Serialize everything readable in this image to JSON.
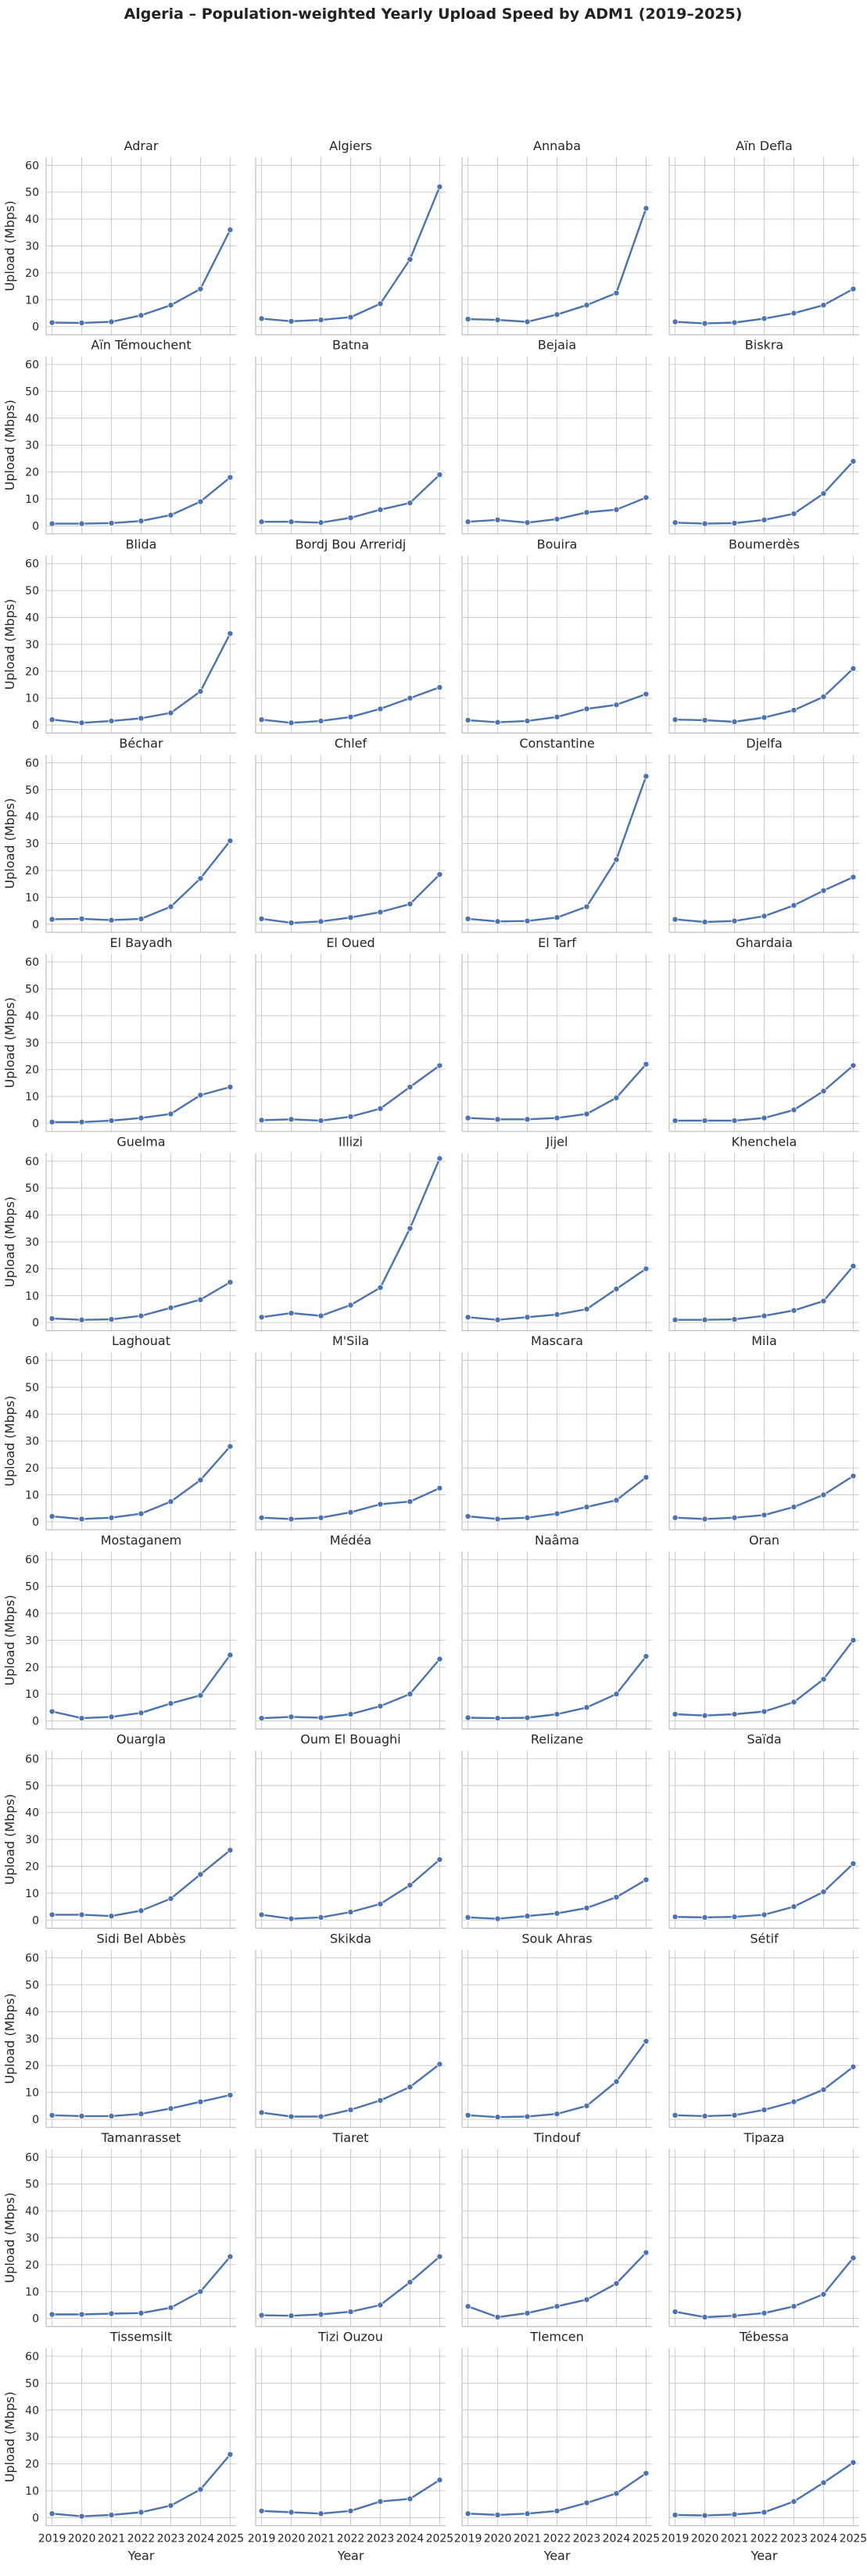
{
  "chart_data": {
    "type": "line",
    "title": "Algeria – Population-weighted Yearly Upload Speed by ADM1 (2019–2025)",
    "xlabel": "Year",
    "ylabel": "Upload (Mbps)",
    "x": [
      2019,
      2020,
      2021,
      2022,
      2023,
      2024,
      2025
    ],
    "yticks": [
      0,
      10,
      20,
      30,
      40,
      50,
      60
    ],
    "ylim": [
      -3,
      63
    ],
    "xlim": [
      2018.8,
      2025.2
    ],
    "grid": true,
    "color": "#4c72b0",
    "panels": [
      {
        "name": "Adrar",
        "values": [
          1.5,
          1.4,
          1.8,
          4.2,
          8.0,
          14.0,
          36.0
        ]
      },
      {
        "name": "Algiers",
        "values": [
          3.0,
          2.0,
          2.5,
          3.5,
          8.5,
          25.0,
          52.0
        ]
      },
      {
        "name": "Annaba",
        "values": [
          2.8,
          2.5,
          1.8,
          4.5,
          8.0,
          12.5,
          44.0
        ]
      },
      {
        "name": "Aïn Defla",
        "values": [
          1.8,
          1.2,
          1.5,
          3.0,
          5.0,
          8.0,
          14.0
        ]
      },
      {
        "name": "Aïn Témouchent",
        "values": [
          0.8,
          0.8,
          1.0,
          1.8,
          4.0,
          9.0,
          18.0
        ]
      },
      {
        "name": "Batna",
        "values": [
          1.5,
          1.5,
          1.2,
          3.0,
          6.0,
          8.5,
          19.0
        ]
      },
      {
        "name": "Bejaia",
        "values": [
          1.5,
          2.2,
          1.2,
          2.5,
          5.0,
          6.0,
          10.5
        ]
      },
      {
        "name": "Biskra",
        "values": [
          1.2,
          0.8,
          1.0,
          2.2,
          4.5,
          12.0,
          24.0
        ]
      },
      {
        "name": "Blida",
        "values": [
          2.0,
          0.8,
          1.5,
          2.5,
          4.5,
          12.5,
          34.0
        ]
      },
      {
        "name": "Bordj Bou Arreridj",
        "values": [
          2.0,
          0.8,
          1.5,
          3.0,
          6.0,
          10.0,
          14.0
        ]
      },
      {
        "name": "Bouira",
        "values": [
          1.8,
          1.0,
          1.5,
          3.0,
          6.0,
          7.5,
          11.5
        ]
      },
      {
        "name": "Boumerdès",
        "values": [
          2.0,
          1.8,
          1.2,
          2.8,
          5.5,
          10.5,
          21.0
        ]
      },
      {
        "name": "Béchar",
        "values": [
          1.8,
          2.0,
          1.5,
          2.0,
          6.5,
          17.0,
          31.0
        ]
      },
      {
        "name": "Chlef",
        "values": [
          2.0,
          0.5,
          1.0,
          2.5,
          4.5,
          7.5,
          18.5
        ]
      },
      {
        "name": "Constantine",
        "values": [
          2.0,
          1.0,
          1.2,
          2.5,
          6.5,
          24.0,
          55.0
        ]
      },
      {
        "name": "Djelfa",
        "values": [
          1.8,
          0.8,
          1.2,
          3.0,
          7.0,
          12.5,
          17.5
        ]
      },
      {
        "name": "El Bayadh",
        "values": [
          0.5,
          0.5,
          1.0,
          2.0,
          3.5,
          10.5,
          13.5
        ]
      },
      {
        "name": "El Oued",
        "values": [
          1.2,
          1.5,
          1.0,
          2.5,
          5.5,
          13.5,
          21.5
        ]
      },
      {
        "name": "El Tarf",
        "values": [
          2.0,
          1.5,
          1.5,
          2.0,
          3.5,
          9.5,
          22.0
        ]
      },
      {
        "name": "Ghardaia",
        "values": [
          1.0,
          1.0,
          1.0,
          2.0,
          5.0,
          12.0,
          21.5
        ]
      },
      {
        "name": "Guelma",
        "values": [
          1.5,
          1.0,
          1.2,
          2.5,
          5.5,
          8.5,
          15.0
        ]
      },
      {
        "name": "Illizi",
        "values": [
          2.0,
          3.5,
          2.5,
          6.5,
          13.0,
          35.0,
          61.0
        ]
      },
      {
        "name": "Jijel",
        "values": [
          2.0,
          1.0,
          2.0,
          3.0,
          5.0,
          12.5,
          20.0
        ]
      },
      {
        "name": "Khenchela",
        "values": [
          1.0,
          1.0,
          1.2,
          2.5,
          4.5,
          8.0,
          21.0
        ]
      },
      {
        "name": "Laghouat",
        "values": [
          2.0,
          1.0,
          1.5,
          3.0,
          7.5,
          15.5,
          28.0
        ]
      },
      {
        "name": "M'Sila",
        "values": [
          1.5,
          1.0,
          1.5,
          3.5,
          6.5,
          7.5,
          12.5
        ]
      },
      {
        "name": "Mascara",
        "values": [
          2.0,
          1.0,
          1.5,
          3.0,
          5.5,
          8.0,
          16.5
        ]
      },
      {
        "name": "Mila",
        "values": [
          1.5,
          1.0,
          1.5,
          2.5,
          5.5,
          10.0,
          17.0
        ]
      },
      {
        "name": "Mostaganem",
        "values": [
          3.5,
          1.0,
          1.5,
          3.0,
          6.5,
          9.5,
          24.5
        ]
      },
      {
        "name": "Médéa",
        "values": [
          1.0,
          1.5,
          1.2,
          2.5,
          5.5,
          10.0,
          23.0
        ]
      },
      {
        "name": "Naâma",
        "values": [
          1.2,
          1.0,
          1.2,
          2.5,
          5.0,
          10.0,
          24.0
        ]
      },
      {
        "name": "Oran",
        "values": [
          2.5,
          2.0,
          2.5,
          3.5,
          7.0,
          15.5,
          30.0
        ]
      },
      {
        "name": "Ouargla",
        "values": [
          2.0,
          2.0,
          1.5,
          3.5,
          8.0,
          17.0,
          26.0
        ]
      },
      {
        "name": "Oum El Bouaghi",
        "values": [
          2.0,
          0.5,
          1.0,
          3.0,
          6.0,
          13.0,
          22.5
        ]
      },
      {
        "name": "Relizane",
        "values": [
          1.0,
          0.5,
          1.5,
          2.5,
          4.5,
          8.5,
          15.0
        ]
      },
      {
        "name": "Saïda",
        "values": [
          1.2,
          1.0,
          1.2,
          2.0,
          5.0,
          10.5,
          21.0
        ]
      },
      {
        "name": "Sidi Bel Abbès",
        "values": [
          1.5,
          1.2,
          1.2,
          2.0,
          4.0,
          6.5,
          9.0
        ]
      },
      {
        "name": "Skikda",
        "values": [
          2.5,
          1.0,
          1.0,
          3.5,
          7.0,
          12.0,
          20.5
        ]
      },
      {
        "name": "Souk Ahras",
        "values": [
          1.5,
          0.8,
          1.0,
          2.0,
          5.0,
          14.0,
          29.0
        ]
      },
      {
        "name": "Sétif",
        "values": [
          1.5,
          1.2,
          1.5,
          3.5,
          6.5,
          11.0,
          19.5
        ]
      },
      {
        "name": "Tamanrasset",
        "values": [
          1.5,
          1.5,
          1.8,
          2.0,
          4.0,
          10.0,
          23.0
        ]
      },
      {
        "name": "Tiaret",
        "values": [
          1.2,
          1.0,
          1.5,
          2.5,
          5.0,
          13.5,
          23.0
        ]
      },
      {
        "name": "Tindouf",
        "values": [
          4.5,
          0.5,
          2.0,
          4.5,
          7.0,
          13.0,
          24.5
        ]
      },
      {
        "name": "Tipaza",
        "values": [
          2.5,
          0.5,
          1.0,
          2.0,
          4.5,
          9.0,
          22.5
        ]
      },
      {
        "name": "Tissemsilt",
        "values": [
          1.5,
          0.5,
          1.0,
          2.0,
          4.5,
          10.5,
          23.5
        ]
      },
      {
        "name": "Tizi Ouzou",
        "values": [
          2.5,
          2.0,
          1.5,
          2.5,
          6.0,
          7.0,
          14.0
        ]
      },
      {
        "name": "Tlemcen",
        "values": [
          1.5,
          1.0,
          1.5,
          2.5,
          5.5,
          9.0,
          16.5
        ]
      },
      {
        "name": "Tébessa",
        "values": [
          1.0,
          0.8,
          1.2,
          2.0,
          6.0,
          13.0,
          20.5
        ]
      }
    ]
  }
}
